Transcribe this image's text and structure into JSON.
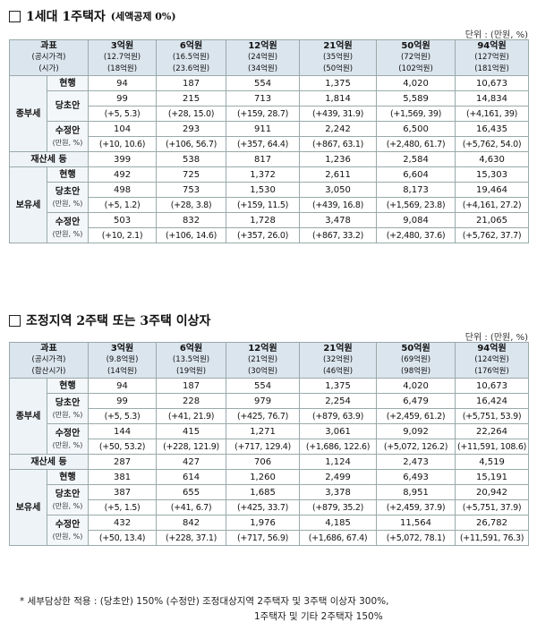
{
  "section1": {
    "title": "1세대 1주택자",
    "subtitle": "(세액공제 0%)",
    "unit": "단위 : (만원, %)",
    "header": {
      "col0": [
        "과표",
        "(공시가격)",
        "(시가)"
      ],
      "cols": [
        [
          "3억원",
          "(12.7억원)",
          "(18억원)"
        ],
        [
          "6억원",
          "(16.5억원)",
          "(23.6억원)"
        ],
        [
          "12억원",
          "(24억원)",
          "(34억원)"
        ],
        [
          "21억원",
          "(35억원)",
          "(50억원)"
        ],
        [
          "50억원",
          "(72억원)",
          "(102억원)"
        ],
        [
          "94억원",
          "(127억원)",
          "(181억원)"
        ]
      ]
    },
    "groups": [
      {
        "name": "종부세",
        "rows": [
          {
            "label": "현행",
            "small": "",
            "values": [
              "94",
              "187",
              "554",
              "1,375",
              "4,020",
              "10,673"
            ],
            "diff": null
          },
          {
            "label": "당초안",
            "small": "",
            "values": [
              "99",
              "215",
              "713",
              "1,814",
              "5,589",
              "14,834"
            ],
            "diff": [
              "(+5, 5.3)",
              "(+28, 15.0)",
              "(+159, 28.7)",
              "(+439, 31.9)",
              "(+1,569, 39)",
              "(+4,161, 39)"
            ]
          },
          {
            "label": "수정안",
            "small": "(만원, %)",
            "values": [
              "104",
              "293",
              "911",
              "2,242",
              "6,500",
              "16,435"
            ],
            "diff": [
              "(+10, 10.6)",
              "(+106, 56.7)",
              "(+357, 64.4)",
              "(+867, 63.1)",
              "(+2,480, 61.7)",
              "(+5,762, 54.0)"
            ]
          }
        ]
      },
      {
        "name": "재산세 등",
        "single": true,
        "values": [
          "399",
          "538",
          "817",
          "1,236",
          "2,584",
          "4,630"
        ]
      },
      {
        "name": "보유세",
        "rows": [
          {
            "label": "현행",
            "small": "",
            "values": [
              "492",
              "725",
              "1,372",
              "2,611",
              "6,604",
              "15,303"
            ],
            "diff": null
          },
          {
            "label": "당초안",
            "small": "(만원, %)",
            "values": [
              "498",
              "753",
              "1,530",
              "3,050",
              "8,173",
              "19,464"
            ],
            "diff": [
              "(+5, 1.2)",
              "(+28, 3.8)",
              "(+159, 11.5)",
              "(+439, 16.8)",
              "(+1,569, 23.8)",
              "(+4,161, 27.2)"
            ]
          },
          {
            "label": "수정안",
            "small": "(만원, %)",
            "values": [
              "503",
              "832",
              "1,728",
              "3,478",
              "9,084",
              "21,065"
            ],
            "diff": [
              "(+10, 2.1)",
              "(+106, 14.6)",
              "(+357, 26.0)",
              "(+867, 33.2)",
              "(+2,480, 37.6)",
              "(+5,762, 37.7)"
            ]
          }
        ]
      }
    ]
  },
  "section2": {
    "title": "조정지역 2주택 또는 3주택 이상자",
    "unit": "단위 : (만원, %)",
    "header": {
      "col0": [
        "과표",
        "(공시가격)",
        "(합산시가)"
      ],
      "cols": [
        [
          "3억원",
          "(9.8억원)",
          "(14억원)"
        ],
        [
          "6억원",
          "(13.5억원)",
          "(19억원)"
        ],
        [
          "12억원",
          "(21억원)",
          "(30억원)"
        ],
        [
          "21억원",
          "(32억원)",
          "(46억원)"
        ],
        [
          "50억원",
          "(69억원)",
          "(98억원)"
        ],
        [
          "94억원",
          "(124억원)",
          "(176억원)"
        ]
      ]
    },
    "groups": [
      {
        "name": "종부세",
        "rows": [
          {
            "label": "현행",
            "small": "",
            "values": [
              "94",
              "187",
              "554",
              "1,375",
              "4,020",
              "10,673"
            ],
            "diff": null
          },
          {
            "label": "당초안",
            "small": "(만원, %)",
            "values": [
              "99",
              "228",
              "979",
              "2,254",
              "6,479",
              "16,424"
            ],
            "diff": [
              "(+5, 5.3)",
              "(+41, 21.9)",
              "(+425, 76.7)",
              "(+879, 63.9)",
              "(+2,459, 61.2)",
              "(+5,751, 53.9)"
            ]
          },
          {
            "label": "수정안",
            "small": "(만원, %)",
            "values": [
              "144",
              "415",
              "1,271",
              "3,061",
              "9,092",
              "22,264"
            ],
            "diff": [
              "(+50, 53.2)",
              "(+228, 121.9)",
              "(+717, 129.4)",
              "(+1,686, 122.6)",
              "(+5,072, 126.2)",
              "(+11,591, 108.6)"
            ]
          }
        ]
      },
      {
        "name": "재산세 등",
        "single": true,
        "values": [
          "287",
          "427",
          "706",
          "1,124",
          "2,473",
          "4,519"
        ]
      },
      {
        "name": "보유세",
        "rows": [
          {
            "label": "현행",
            "small": "",
            "values": [
              "381",
              "614",
              "1,260",
              "2,499",
              "6,493",
              "15,191"
            ],
            "diff": null
          },
          {
            "label": "당초안",
            "small": "(만원, %)",
            "values": [
              "387",
              "655",
              "1,685",
              "3,378",
              "8,951",
              "20,942"
            ],
            "diff": [
              "(+5, 1.5)",
              "(+41, 6.7)",
              "(+425, 33.7)",
              "(+879, 35.2)",
              "(+2,459, 37.9)",
              "(+5,751, 37.9)"
            ]
          },
          {
            "label": "수정안",
            "small": "(만원, %)",
            "values": [
              "432",
              "842",
              "1,976",
              "4,185",
              "11,564",
              "26,782"
            ],
            "diff": [
              "(+50, 13.4)",
              "(+228, 37.1)",
              "(+717, 56.9)",
              "(+1,686, 67.4)",
              "(+5,072, 78.1)",
              "(+11,591, 76.3)"
            ]
          }
        ]
      }
    ]
  },
  "footnote": {
    "line1": "* 세부담상한 적용 : (당초안) 150% (수정안) 조정대상지역 2주택자 및 3주택 이상자 300%,",
    "line2": "1주택자 및 기타 2주택자 150%"
  }
}
